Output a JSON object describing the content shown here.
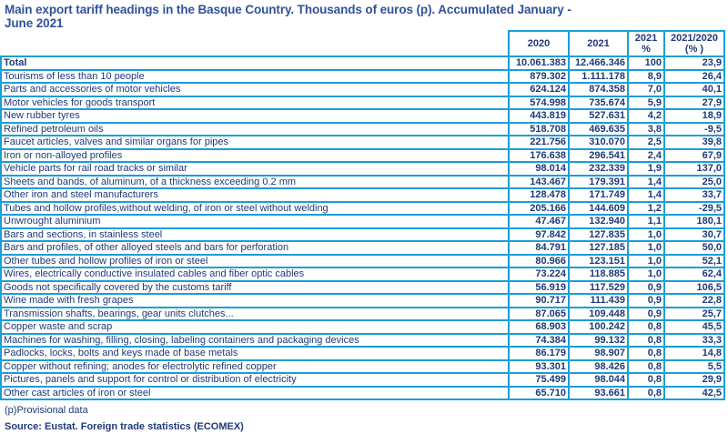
{
  "colors": {
    "accent_border": "#1a9ed8",
    "title_text": "#31519b",
    "body_text": "#1e3a78"
  },
  "chart_data": {
    "type": "table",
    "title": "Main export tariff headings in the Basque Country. Thousands of euros (p). Accumulated January - June 2021",
    "title_lines": [
      "Main export tariff headings in the Basque Country. Thousands of euros (p). Accumulated January -",
      "June 2021"
    ],
    "columns": [
      "2020",
      "2021",
      "2021\n%",
      "2021/2020\n(% )"
    ],
    "total": {
      "label": "Total",
      "values": [
        "10.061.383",
        "12.466.346",
        "100",
        "23,9"
      ]
    },
    "rows": [
      {
        "label": "Tourisms of less than 10 people",
        "values": [
          "879.302",
          "1.111.178",
          "8,9",
          "26,4"
        ]
      },
      {
        "label": "Parts and accessories of motor vehicles",
        "values": [
          "624.124",
          "874.358",
          "7,0",
          "40,1"
        ]
      },
      {
        "label": "Motor vehicles for goods transport",
        "values": [
          "574.998",
          "735.674",
          "5,9",
          "27,9"
        ]
      },
      {
        "label": "New rubber tyres",
        "values": [
          "443.819",
          "527.631",
          "4,2",
          "18,9"
        ]
      },
      {
        "label": "Refined petroleum oils",
        "values": [
          "518.708",
          "469.635",
          "3,8",
          "-9,5"
        ]
      },
      {
        "label": "Faucet articles, valves and similar organs for pipes",
        "values": [
          "221.756",
          "310.070",
          "2,5",
          "39,8"
        ]
      },
      {
        "label": "Iron or non-alloyed profiles",
        "values": [
          "176.638",
          "296.541",
          "2,4",
          "67,9"
        ]
      },
      {
        "label": "Vehicle parts for rail road tracks or similar",
        "values": [
          "98.014",
          "232.339",
          "1,9",
          "137,0"
        ]
      },
      {
        "label": "Sheets and bands, of aluminum, of a thickness exceeding 0.2 mm",
        "values": [
          "143.467",
          "179.391",
          "1,4",
          "25,0"
        ]
      },
      {
        "label": "Other iron and steel manufacturers",
        "values": [
          "128.478",
          "171.749",
          "1,4",
          "33,7"
        ]
      },
      {
        "label": "Tubes and hollow profiles,without welding, of iron or steel without welding",
        "values": [
          "205.166",
          "144.609",
          "1,2",
          "-29,5"
        ]
      },
      {
        "label": "Unwrought aluminium",
        "values": [
          "47.467",
          "132.940",
          "1,1",
          "180,1"
        ]
      },
      {
        "label": "Bars and sections, in stainless steel",
        "values": [
          "97.842",
          "127.835",
          "1,0",
          "30,7"
        ]
      },
      {
        "label": "Bars and profiles, of other alloyed steels and bars for perforation",
        "values": [
          "84.791",
          "127.185",
          "1,0",
          "50,0"
        ]
      },
      {
        "label": "Other tubes and hollow profiles of iron or steel",
        "values": [
          "80.966",
          "123.151",
          "1,0",
          "52,1"
        ]
      },
      {
        "label": "Wires, electrically conductive insulated cables and fiber optic cables",
        "values": [
          "73.224",
          "118.885",
          "1,0",
          "62,4"
        ]
      },
      {
        "label": "Goods not specifically covered by the customs tariff",
        "values": [
          "56.919",
          "117.529",
          "0,9",
          "106,5"
        ]
      },
      {
        "label": "Wine made with fresh grapes",
        "values": [
          "90.717",
          "111.439",
          "0,9",
          "22,8"
        ]
      },
      {
        "label": "Transmission shafts, bearings, gear units clutches...",
        "values": [
          "87.065",
          "109.448",
          "0,9",
          "25,7"
        ]
      },
      {
        "label": "Copper waste and scrap",
        "values": [
          "68.903",
          "100.242",
          "0,8",
          "45,5"
        ]
      },
      {
        "label": "Machines for washing, filling, closing, labeling containers and packaging devices",
        "values": [
          "74.384",
          "99.132",
          "0,8",
          "33,3"
        ]
      },
      {
        "label": "Padlocks, locks, bolts and keys made of base metals",
        "values": [
          "86.179",
          "98.907",
          "0,8",
          "14,8"
        ]
      },
      {
        "label": "Copper without refining; anodes for electrolytic refined copper",
        "values": [
          "93.301",
          "98.426",
          "0,8",
          "5,5"
        ]
      },
      {
        "label": "Pictures, panels and support for control or distribution of electricity",
        "values": [
          "75.499",
          "98.044",
          "0,8",
          "29,9"
        ]
      },
      {
        "label": "Other cast articles of iron or steel",
        "values": [
          "65.710",
          "93.661",
          "0,8",
          "42,5"
        ]
      }
    ],
    "footnote": "(p)Provisional data",
    "source": "Source: Eustat. Foreign trade statistics (ECOMEX)"
  }
}
